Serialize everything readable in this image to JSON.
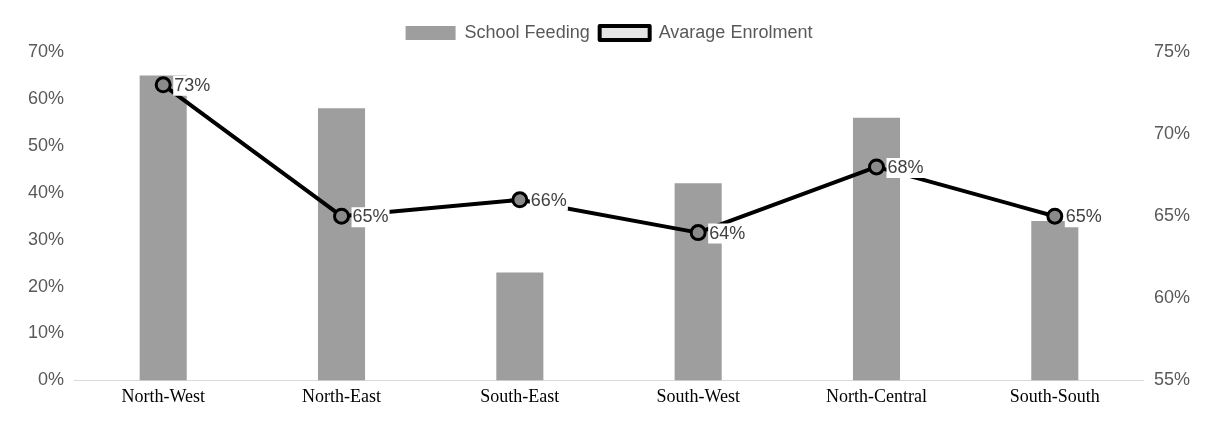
{
  "chart_data": {
    "type": "bar",
    "categories": [
      "North-West",
      "North-East",
      "South-East",
      "South-West",
      "North-Central",
      "South-South"
    ],
    "series": [
      {
        "name": "School Feeding",
        "color": "#9e9e9e",
        "values": [
          65,
          58,
          23,
          42,
          56,
          34
        ]
      },
      {
        "name": "Avarage Enrolment",
        "type": "line",
        "axis": "y2",
        "color": "#000000",
        "marker": "circle",
        "values": [
          73,
          65,
          66,
          64,
          68,
          65
        ],
        "value_labels": [
          "73%",
          "65%",
          "66%",
          "64%",
          "68%",
          "65%"
        ]
      }
    ],
    "ylim": [
      0,
      70
    ],
    "yticks": [
      {
        "value": 0,
        "label": "0%"
      },
      {
        "value": 10,
        "label": "10%"
      },
      {
        "value": 20,
        "label": "20%"
      },
      {
        "value": 30,
        "label": "30%"
      },
      {
        "value": 40,
        "label": "40%"
      },
      {
        "value": 50,
        "label": "50%"
      },
      {
        "value": 60,
        "label": "60%"
      },
      {
        "value": 70,
        "label": "70%"
      }
    ],
    "y2lim": [
      55,
      75
    ],
    "y2ticks": [
      {
        "value": 55,
        "label": "55%"
      },
      {
        "value": 60,
        "label": "60%"
      },
      {
        "value": 65,
        "label": "65%"
      },
      {
        "value": 70,
        "label": "70%"
      },
      {
        "value": 75,
        "label": "75%"
      }
    ],
    "legend": "top",
    "grid": false
  }
}
